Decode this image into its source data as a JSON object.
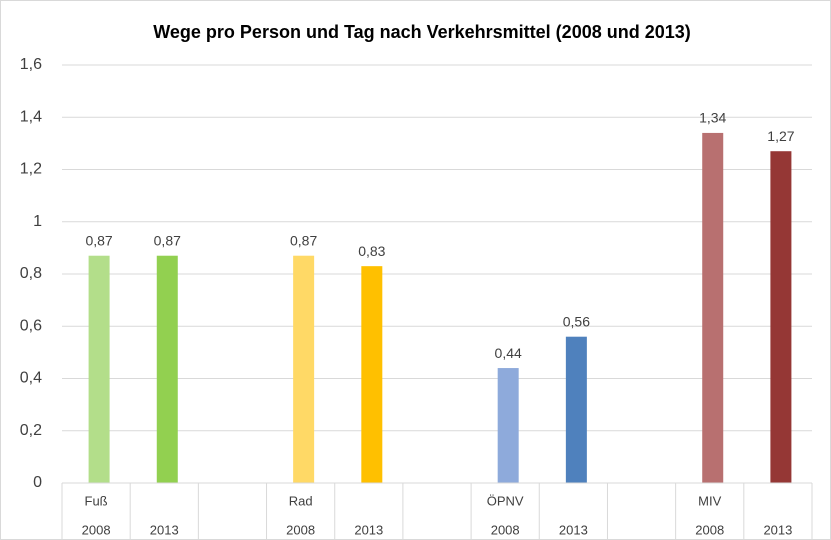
{
  "chart_data": {
    "type": "bar",
    "title": "Wege pro Person und Tag nach Verkehrsmittel (2008 und 2013)",
    "groups": [
      "Fuß",
      "Rad",
      "ÖPNV",
      "MIV"
    ],
    "categories": [
      "2008",
      "2013",
      null,
      "2008",
      "2013",
      null,
      "2008",
      "2013",
      null,
      "2008",
      "2013"
    ],
    "values": [
      0.87,
      0.87,
      null,
      0.87,
      0.83,
      null,
      0.44,
      0.56,
      null,
      1.34,
      1.27
    ],
    "value_labels": [
      "0,87",
      "0,87",
      null,
      "0,87",
      "0,83",
      null,
      "0,44",
      "0,56",
      null,
      "1,34",
      "1,27"
    ],
    "colors": [
      "#b3de8a",
      "#92d050",
      null,
      "#ffd966",
      "#ffc000",
      null,
      "#8eaadb",
      "#4f81bd",
      null,
      "#b87070",
      "#953735"
    ],
    "ylim": [
      0,
      1.6
    ],
    "yticks": [
      0,
      {
        "value": 0.2,
        "label": "0,2"
      },
      {
        "value": 0.4,
        "label": "0,4"
      },
      {
        "value": 0.6,
        "label": "0,6"
      },
      {
        "value": 0.8,
        "label": "0,8"
      },
      1,
      {
        "value": 1.2,
        "label": "1,2"
      },
      {
        "value": 1.4,
        "label": "1,4"
      },
      {
        "value": 1.6,
        "label": "1,6"
      }
    ],
    "grid": true
  }
}
